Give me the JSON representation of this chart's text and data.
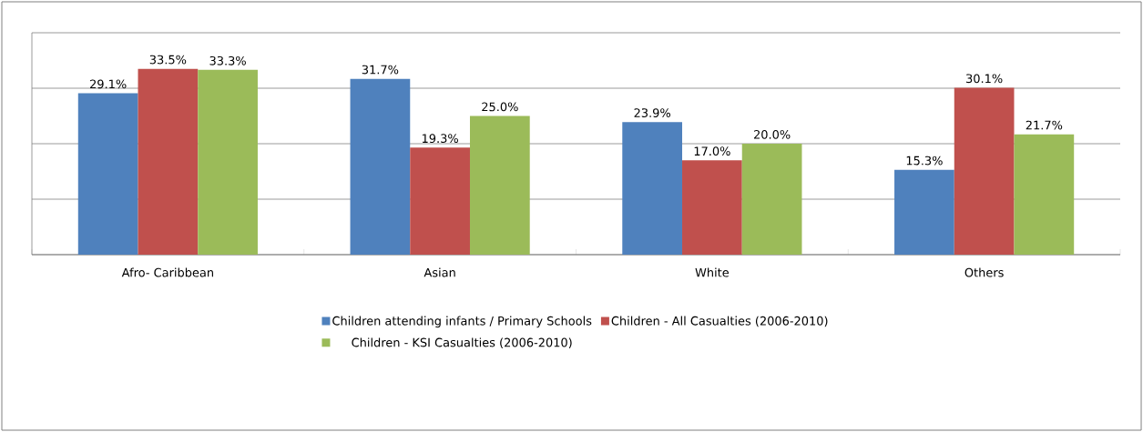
{
  "chart_data": {
    "type": "bar",
    "categories": [
      "Afro- Caribbean",
      "Asian",
      "White",
      "Others"
    ],
    "series": [
      {
        "name": "Children attending infants / Primary Schools",
        "color": "#4f81bd",
        "values": [
          29.1,
          31.7,
          23.9,
          15.3
        ],
        "value_labels": [
          "29.1%",
          "31.7%",
          "23.9%",
          "15.3%"
        ]
      },
      {
        "name": "Children - All Casualties (2006-2010)",
        "color": "#c0504d",
        "values": [
          33.5,
          19.3,
          17.0,
          30.1
        ],
        "value_labels": [
          "33.5%",
          "19.3%",
          "17.0%",
          "30.1%"
        ]
      },
      {
        "name": "Children - KSI Casualties (2006-2010)",
        "color": "#9bbb59",
        "values": [
          33.3,
          25.0,
          20.0,
          21.7
        ],
        "value_labels": [
          "33.3%",
          "25.0%",
          "20.0%",
          "21.7%"
        ]
      }
    ],
    "ylim": [
      0,
      40
    ],
    "yticks": [
      {
        "value": 0,
        "label": null
      },
      {
        "value": 10,
        "label": null
      },
      {
        "value": 20,
        "label": null
      },
      {
        "value": 30,
        "label": null
      },
      {
        "value": 40,
        "label": null
      }
    ],
    "tick_labels": "x",
    "grid": "y",
    "legend": "bottom"
  }
}
